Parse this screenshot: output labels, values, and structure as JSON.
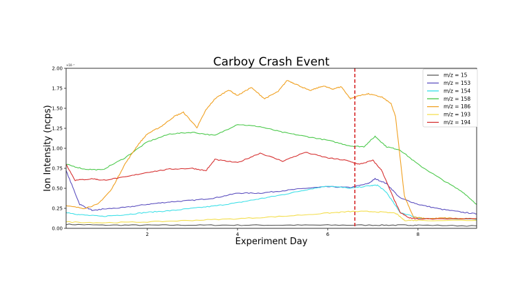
{
  "chart_data": {
    "type": "line",
    "title": "Carboy Crash Event",
    "xlabel": "Experiment Day",
    "ylabel": "Ion Intensity (ncps)",
    "y_exponent_label": "×10⁻⁷",
    "xlim": [
      0.2,
      9.3
    ],
    "ylim": [
      0,
      2.0
    ],
    "xticks": [
      2,
      4,
      6,
      8
    ],
    "yticks": [
      "0.00",
      "0.25",
      "0.50",
      "0.75",
      "1.00",
      "1.25",
      "1.50",
      "1.75",
      "2.00"
    ],
    "grid": false,
    "legend_position": "top-right",
    "event_line": {
      "x": 6.6,
      "color": "#d62728"
    },
    "series": [
      {
        "name": "m/z = 15",
        "color": "#555555",
        "x": [
          0.2,
          1,
          2,
          3,
          4,
          5,
          6,
          7,
          7.6,
          8,
          9.3
        ],
        "y": [
          0.05,
          0.04,
          0.04,
          0.04,
          0.04,
          0.04,
          0.04,
          0.04,
          0.04,
          0.04,
          0.03
        ]
      },
      {
        "name": "m/z = 153",
        "color": "#5b4fbf",
        "x": [
          0.2,
          0.5,
          0.8,
          1,
          1.5,
          2,
          2.5,
          3,
          3.5,
          4,
          4.5,
          5,
          5.5,
          6,
          6.5,
          6.9,
          7.05,
          7.3,
          7.6,
          8,
          8.5,
          9,
          9.3
        ],
        "y": [
          0.72,
          0.3,
          0.22,
          0.24,
          0.26,
          0.3,
          0.33,
          0.35,
          0.38,
          0.44,
          0.44,
          0.47,
          0.5,
          0.52,
          0.51,
          0.56,
          0.62,
          0.56,
          0.38,
          0.3,
          0.24,
          0.2,
          0.18
        ]
      },
      {
        "name": "m/z = 154",
        "color": "#3fe0e8",
        "x": [
          0.2,
          0.5,
          1,
          1.5,
          2,
          2.5,
          3,
          3.5,
          4,
          4.5,
          5,
          5.5,
          6,
          6.5,
          6.9,
          7.1,
          7.3,
          7.6,
          8,
          9.3
        ],
        "y": [
          0.2,
          0.17,
          0.15,
          0.17,
          0.2,
          0.22,
          0.25,
          0.28,
          0.32,
          0.37,
          0.42,
          0.48,
          0.53,
          0.5,
          0.53,
          0.54,
          0.45,
          0.2,
          0.13,
          0.11
        ]
      },
      {
        "name": "m/z = 158",
        "color": "#4cc94c",
        "x": [
          0.2,
          0.6,
          1,
          1.5,
          2,
          2.5,
          3,
          3.5,
          4,
          4.5,
          5,
          5.5,
          6,
          6.5,
          6.8,
          7.05,
          7.3,
          7.6,
          8,
          8.5,
          9,
          9.3
        ],
        "y": [
          0.8,
          0.74,
          0.73,
          0.88,
          1.08,
          1.18,
          1.2,
          1.16,
          1.3,
          1.27,
          1.2,
          1.15,
          1.1,
          1.03,
          1.02,
          1.15,
          1.02,
          0.98,
          0.8,
          0.62,
          0.45,
          0.3
        ]
      },
      {
        "name": "m/z = 186",
        "color": "#f0a020",
        "x": [
          0.2,
          0.6,
          0.9,
          1.2,
          1.5,
          1.8,
          2,
          2.3,
          2.6,
          2.8,
          3.1,
          3.3,
          3.5,
          3.8,
          4,
          4.3,
          4.6,
          4.9,
          5.1,
          5.3,
          5.6,
          5.9,
          6.1,
          6.3,
          6.5,
          6.7,
          6.9,
          7.2,
          7.4,
          7.5,
          7.7,
          7.9,
          8.2,
          8.6,
          9,
          9.3
        ],
        "y": [
          0.28,
          0.25,
          0.3,
          0.48,
          0.8,
          1.05,
          1.18,
          1.27,
          1.4,
          1.45,
          1.26,
          1.48,
          1.62,
          1.73,
          1.66,
          1.76,
          1.62,
          1.71,
          1.85,
          1.8,
          1.72,
          1.78,
          1.74,
          1.77,
          1.62,
          1.66,
          1.68,
          1.64,
          1.56,
          1.4,
          0.4,
          0.14,
          0.12,
          0.13,
          0.12,
          0.12
        ]
      },
      {
        "name": "m/z = 193",
        "color": "#f3dd4a",
        "x": [
          0.2,
          1,
          2,
          3,
          4,
          5,
          6,
          6.5,
          7,
          7.5,
          7.7,
          8,
          9.3
        ],
        "y": [
          0.08,
          0.07,
          0.08,
          0.1,
          0.12,
          0.15,
          0.19,
          0.21,
          0.21,
          0.19,
          0.1,
          0.1,
          0.1
        ]
      },
      {
        "name": "m/z = 194",
        "color": "#d63030",
        "x": [
          0.2,
          0.4,
          0.8,
          1,
          1.5,
          2,
          2.5,
          3,
          3.3,
          3.5,
          4,
          4.5,
          5,
          5.5,
          6,
          6.4,
          6.7,
          7,
          7.2,
          7.4,
          7.6,
          7.8,
          8,
          9.3
        ],
        "y": [
          0.8,
          0.6,
          0.62,
          0.6,
          0.64,
          0.7,
          0.74,
          0.75,
          0.72,
          0.86,
          0.82,
          0.94,
          0.84,
          0.95,
          0.88,
          0.85,
          0.8,
          0.85,
          0.72,
          0.45,
          0.2,
          0.13,
          0.12,
          0.12
        ]
      }
    ]
  }
}
